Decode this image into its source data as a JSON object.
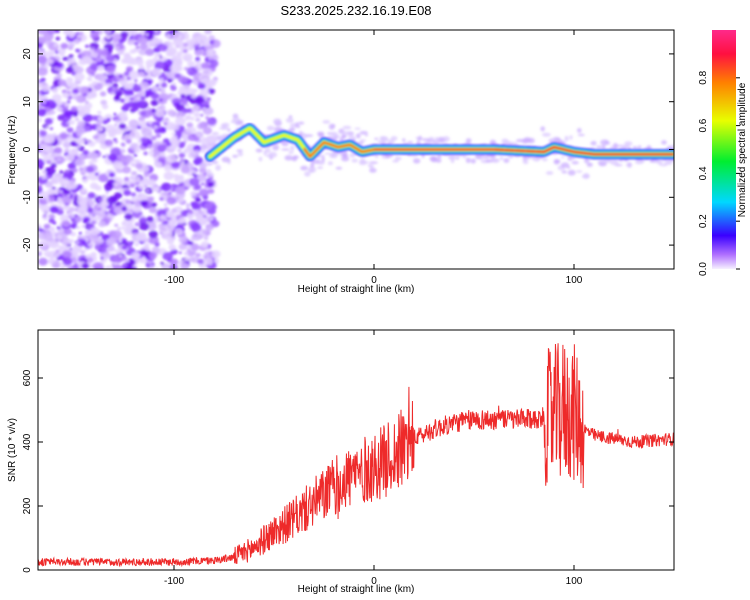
{
  "title": "S233.2025.232.16.19.E08",
  "chart_data": [
    {
      "type": "heatmap",
      "xlabel": "Height of straight line (km)",
      "ylabel": "Frequency (Hz)",
      "xlim": [
        -168,
        150
      ],
      "ylim": [
        -25,
        25
      ],
      "x_ticks": [
        {
          "value": -100,
          "label": "-100"
        },
        {
          "value": 0,
          "label": "0"
        },
        {
          "value": 100,
          "label": "100"
        }
      ],
      "y_ticks": [
        {
          "value": -20,
          "label": "-20"
        },
        {
          "value": -10,
          "label": "-10"
        },
        {
          "value": 0,
          "label": "0"
        },
        {
          "value": 10,
          "label": "10"
        },
        {
          "value": 20,
          "label": "20"
        }
      ],
      "noise_region_x": [
        -168,
        -82
      ],
      "ridge_x": [
        -82,
        -70,
        -62,
        -55,
        -45,
        -38,
        -32,
        -25,
        -18,
        -12,
        -6,
        0,
        10,
        30,
        60,
        85,
        90,
        100,
        110,
        150
      ],
      "ridge_freq": [
        -1.5,
        2.5,
        4.5,
        1.5,
        3.0,
        2.0,
        -1.5,
        1.5,
        0.5,
        1.0,
        -0.5,
        0.0,
        0.0,
        0.0,
        0.0,
        -0.5,
        0.5,
        -0.5,
        -1.0,
        -1.0
      ],
      "colorbar": {
        "label": "Normalized spectral amplitude",
        "range": [
          0,
          1
        ],
        "ticks": [
          {
            "value": 0.0,
            "label": "0.0"
          },
          {
            "value": 0.2,
            "label": "0.2"
          },
          {
            "value": 0.4,
            "label": "0.4"
          },
          {
            "value": 0.6,
            "label": "0.6"
          },
          {
            "value": 0.8,
            "label": "0.8"
          }
        ]
      }
    },
    {
      "type": "line",
      "xlabel": "Height of straight line (km)",
      "ylabel": "SNR (10 * v/v)",
      "xlim": [
        -168,
        150
      ],
      "ylim": [
        0,
        750
      ],
      "x_ticks": [
        {
          "value": -100,
          "label": "-100"
        },
        {
          "value": 0,
          "label": "0"
        },
        {
          "value": 100,
          "label": "100"
        }
      ],
      "y_ticks": [
        {
          "value": 0,
          "label": "0"
        },
        {
          "value": 200,
          "label": "200"
        },
        {
          "value": 400,
          "label": "400"
        },
        {
          "value": 600,
          "label": "600"
        }
      ],
      "color": "#ee2a2a",
      "trend_x": [
        -168,
        -100,
        -80,
        -70,
        -60,
        -50,
        -40,
        -30,
        -20,
        -10,
        0,
        10,
        20,
        30,
        40,
        50,
        60,
        70,
        80,
        88,
        95,
        100,
        105,
        110,
        120,
        130,
        140,
        150
      ],
      "trend_y": [
        25,
        25,
        30,
        40,
        70,
        120,
        160,
        210,
        260,
        300,
        320,
        360,
        410,
        440,
        460,
        470,
        470,
        470,
        470,
        480,
        500,
        490,
        440,
        420,
        410,
        400,
        405,
        410
      ]
    }
  ]
}
